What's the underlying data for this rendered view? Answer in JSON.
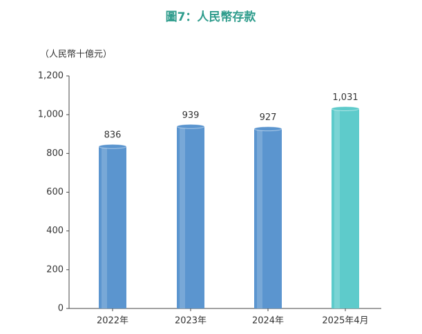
{
  "chart_data": {
    "type": "bar",
    "title": "圖7：人民幣存款",
    "y_label": "（人民幣十億元）",
    "categories": [
      "2022年",
      "2023年",
      "2024年",
      "2025年4月"
    ],
    "values": [
      836,
      939,
      927,
      1031
    ],
    "value_labels": [
      "836",
      "939",
      "927",
      "1,031"
    ],
    "colors": [
      "#5b95cf",
      "#5b95cf",
      "#5b95cf",
      "#5ecbcb"
    ],
    "ylim": [
      0,
      1200
    ],
    "yticks": [
      0,
      200,
      400,
      600,
      800,
      {
        "value": 1000,
        "label": "1,000"
      },
      {
        "value": 1200,
        "label": "1,200"
      }
    ],
    "grid": false
  }
}
